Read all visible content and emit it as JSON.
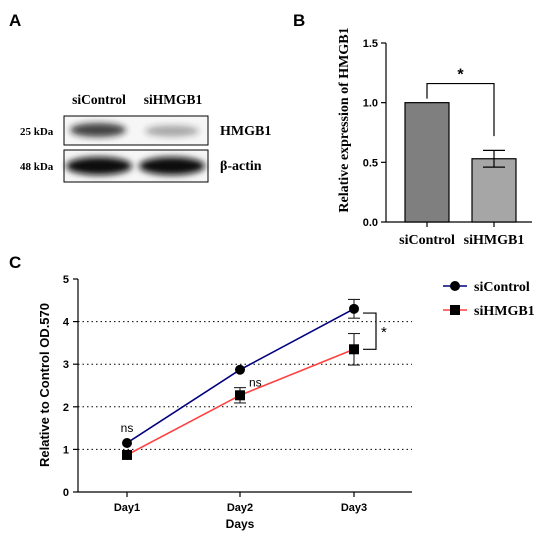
{
  "panels": {
    "a": "A",
    "b": "B",
    "c": "C"
  },
  "blot": {
    "lanes": [
      "siControl",
      "siHMGB1"
    ],
    "rows": [
      {
        "marker": "25 kDa",
        "protein": "HMGB1",
        "intensity": [
          0.8,
          0.35
        ]
      },
      {
        "marker": "48 kDa",
        "protein": "β-actin",
        "intensity": [
          1.0,
          1.0
        ]
      }
    ]
  },
  "chart_data": [
    {
      "type": "bar",
      "categories": [
        "siControl",
        "siHMGB1"
      ],
      "values": [
        1.0,
        0.53
      ],
      "errors": [
        0,
        0.07
      ],
      "colors": [
        "#7f7f7f",
        "#a6a6a6"
      ],
      "ylabel": "Relative expression of HMGB1",
      "ylim": [
        0,
        1.5
      ],
      "yticks": [
        "0.0",
        "0.5",
        "1.0",
        "1.5"
      ],
      "significance": "*",
      "grid": false
    },
    {
      "type": "line",
      "categories": [
        "Day1",
        "Day2",
        "Day3"
      ],
      "xlabel": "Days",
      "ylabel": "Relative to Control OD.570",
      "ylim": [
        0,
        5
      ],
      "yticks": [
        "0",
        "1",
        "2",
        "3",
        "4",
        "5"
      ],
      "grid": "horizontal dotted",
      "legend_position": "top-right",
      "series": [
        {
          "name": "siControl",
          "color": "#00007f",
          "marker": "circle",
          "values": [
            1.15,
            2.87,
            4.3
          ],
          "errors": [
            0,
            0,
            0.22
          ]
        },
        {
          "name": "siHMGB1",
          "color": "#ff4040",
          "marker": "square",
          "values": [
            0.87,
            2.27,
            3.35
          ],
          "errors": [
            0,
            0.18,
            0.37
          ]
        }
      ],
      "annotations": [
        "ns",
        "ns",
        "*"
      ]
    }
  ]
}
